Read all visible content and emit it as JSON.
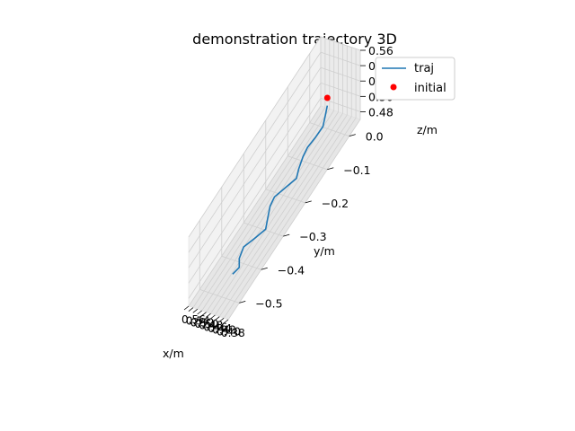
{
  "chart_data": {
    "type": "line",
    "projection": "3d",
    "title": "demonstration trajectory 3D",
    "xlabel": "x/m",
    "ylabel": "y/m",
    "zlabel": "z/m",
    "xlim": [
      0.38,
      0.56
    ],
    "ylim": [
      -0.55,
      0.05
    ],
    "zlim": [
      0.47,
      0.56
    ],
    "x_ticks": [
      "0.38",
      "0.40",
      "0.42",
      "0.44",
      "0.46",
      "0.48",
      "0.50",
      "0.52",
      "0.54",
      "0.56"
    ],
    "y_ticks": [
      "0.0",
      "−0.1",
      "−0.2",
      "−0.3",
      "−0.4",
      "−0.5"
    ],
    "y_tick_values": [
      0.0,
      -0.1,
      -0.2,
      -0.3,
      -0.4,
      -0.5
    ],
    "z_ticks": [
      "0.48",
      "0.50",
      "0.52",
      "0.54",
      "0.56"
    ],
    "z_tick_values": [
      0.48,
      0.5,
      0.52,
      0.54,
      0.56
    ],
    "grid": true,
    "legend": {
      "placement": "top-right",
      "entries": [
        "traj",
        "initial"
      ]
    },
    "series": [
      {
        "name": "traj",
        "color": "#1f77b4",
        "points": [
          [
            0.48,
            0.0,
            0.5
          ],
          [
            0.47,
            -0.02,
            0.495
          ],
          [
            0.46,
            -0.04,
            0.492
          ],
          [
            0.465,
            -0.07,
            0.49
          ],
          [
            0.47,
            -0.1,
            0.49
          ],
          [
            0.46,
            -0.13,
            0.492
          ],
          [
            0.44,
            -0.17,
            0.495
          ],
          [
            0.42,
            -0.2,
            0.498
          ],
          [
            0.44,
            -0.23,
            0.497
          ],
          [
            0.46,
            -0.26,
            0.496
          ],
          [
            0.45,
            -0.29,
            0.498
          ],
          [
            0.43,
            -0.32,
            0.498
          ],
          [
            0.41,
            -0.35,
            0.498
          ],
          [
            0.43,
            -0.38,
            0.497
          ],
          [
            0.45,
            -0.41,
            0.497
          ],
          [
            0.44,
            -0.44,
            0.496
          ],
          [
            0.42,
            -0.46,
            0.495
          ],
          [
            0.43,
            -0.48,
            0.494
          ]
        ]
      },
      {
        "name": "initial",
        "color": "#ff0000",
        "points": [
          [
            0.48,
            0.0,
            0.51
          ]
        ]
      }
    ]
  }
}
